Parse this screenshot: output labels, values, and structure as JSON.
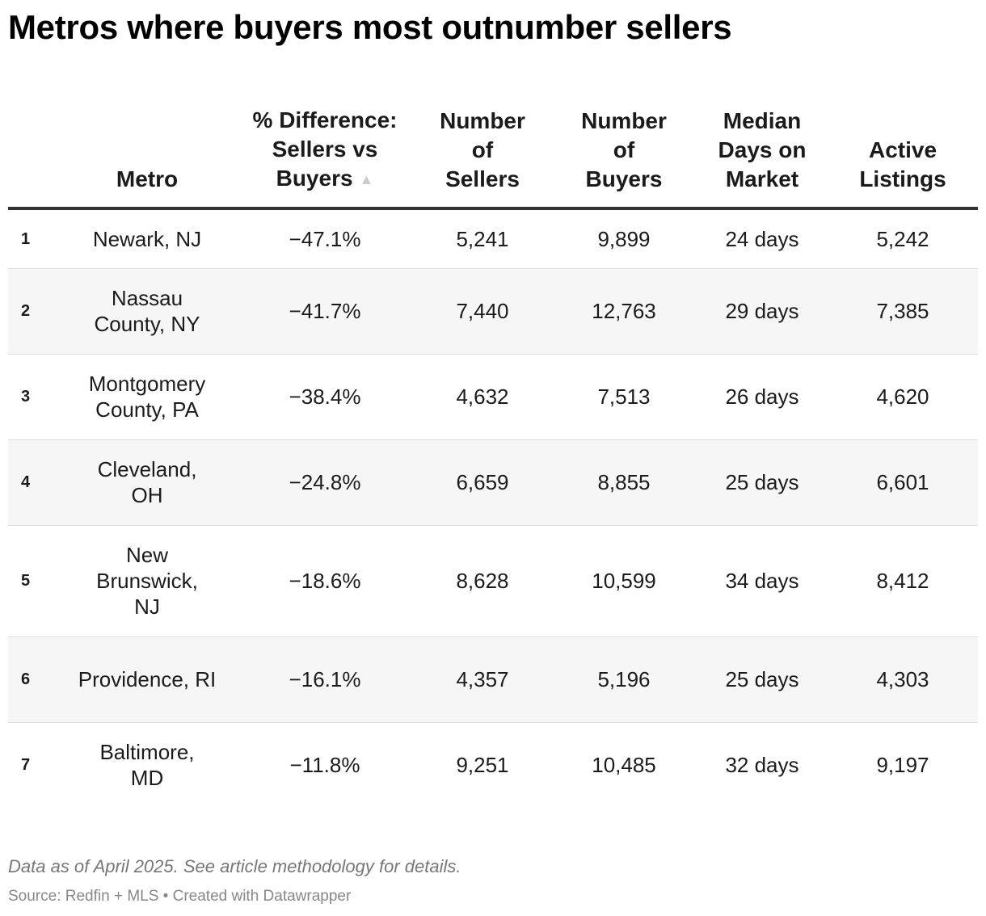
{
  "title": "Metros where buyers most outnumber sellers",
  "note": "Data as of April 2025. See article methodology for details.",
  "source_line": "Source: Redfin + MLS • Created with Datawrapper",
  "chart_data": {
    "type": "table",
    "title": "Metros where buyers most outnumber sellers",
    "sorted_by": "% Difference: Sellers vs Buyers",
    "sort_direction": "ascending",
    "sort_icon": "triangle-up-icon",
    "columns": [
      {
        "key": "rank",
        "label": ""
      },
      {
        "key": "metro",
        "label": "Metro"
      },
      {
        "key": "pct_diff",
        "label": "% Difference: Sellers vs Buyers"
      },
      {
        "key": "sellers",
        "label": "Number of Sellers"
      },
      {
        "key": "buyers",
        "label": "Number of Buyers"
      },
      {
        "key": "days",
        "label": "Median Days on Market"
      },
      {
        "key": "listings",
        "label": "Active Listings"
      }
    ],
    "rows": [
      {
        "rank": "1",
        "metro": "Newark, NJ",
        "pct_diff": "−47.1%",
        "sellers": "5,241",
        "buyers": "9,899",
        "days": "24 days",
        "listings": "5,242"
      },
      {
        "rank": "2",
        "metro": "Nassau County, NY",
        "pct_diff": "−41.7%",
        "sellers": "7,440",
        "buyers": "12,763",
        "days": "29 days",
        "listings": "7,385"
      },
      {
        "rank": "3",
        "metro": "Montgomery County, PA",
        "pct_diff": "−38.4%",
        "sellers": "4,632",
        "buyers": "7,513",
        "days": "26 days",
        "listings": "4,620"
      },
      {
        "rank": "4",
        "metro": "Cleveland, OH",
        "pct_diff": "−24.8%",
        "sellers": "6,659",
        "buyers": "8,855",
        "days": "25 days",
        "listings": "6,601"
      },
      {
        "rank": "5",
        "metro": "New Brunswick, NJ",
        "pct_diff": "−18.6%",
        "sellers": "8,628",
        "buyers": "10,599",
        "days": "34 days",
        "listings": "8,412"
      },
      {
        "rank": "6",
        "metro": "Providence, RI",
        "pct_diff": "−16.1%",
        "sellers": "4,357",
        "buyers": "5,196",
        "days": "25 days",
        "listings": "4,303"
      },
      {
        "rank": "7",
        "metro": "Baltimore, MD",
        "pct_diff": "−11.8%",
        "sellers": "9,251",
        "buyers": "10,485",
        "days": "32 days",
        "listings": "9,197"
      }
    ]
  }
}
